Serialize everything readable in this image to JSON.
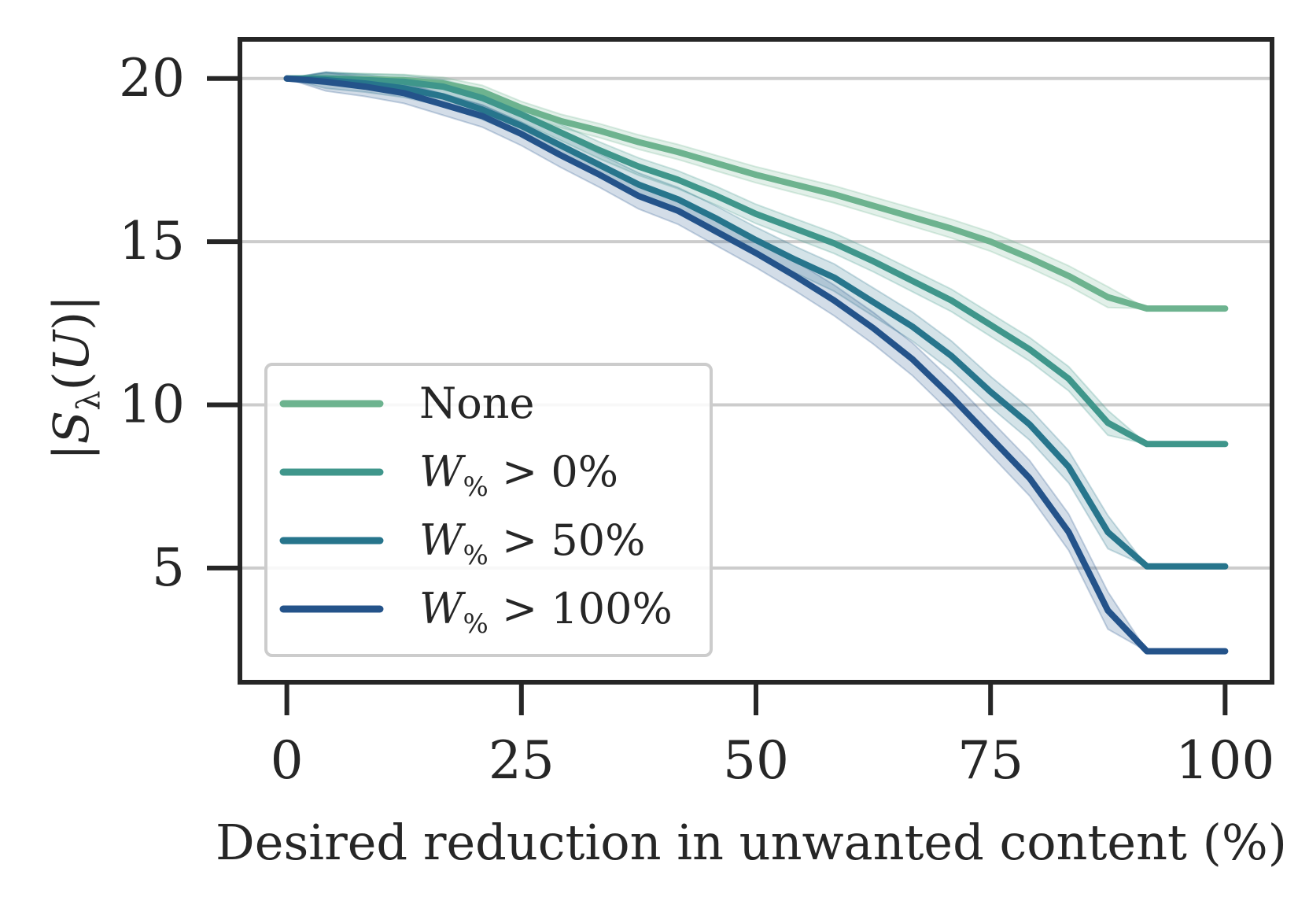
{
  "chart_data": {
    "type": "line",
    "title": "",
    "xlabel": "Desired reduction in unwanted content (%)",
    "ylabel": "|S_λ(U)|",
    "xlim": [
      -5,
      105
    ],
    "ylim": [
      1.5,
      21.2
    ],
    "xticks": [
      0,
      25,
      50,
      75,
      100
    ],
    "xtick_labels": [
      "0",
      "25",
      "50",
      "75",
      "100"
    ],
    "yticks": [
      5,
      10,
      15,
      20
    ],
    "ytick_labels": [
      "5",
      "10",
      "15",
      "20"
    ],
    "grid": "horizontal",
    "legend_position": "lower-left",
    "x": [
      0,
      4.17,
      8.33,
      12.5,
      16.67,
      20.83,
      25,
      29.17,
      33.33,
      37.5,
      41.67,
      45.83,
      50,
      54.17,
      58.33,
      62.5,
      66.67,
      70.83,
      75,
      79.17,
      83.33,
      87.5,
      91.67,
      95.83,
      100
    ],
    "series": [
      {
        "name": "None",
        "legend_label": "None",
        "color": "#6db38f",
        "values": [
          20,
          20,
          19.98,
          19.95,
          19.85,
          19.6,
          19.1,
          18.7,
          18.4,
          18.05,
          17.75,
          17.4,
          17.05,
          16.75,
          16.45,
          16.1,
          15.75,
          15.4,
          15.0,
          14.5,
          13.95,
          13.3,
          12.95,
          12.95,
          12.95
        ],
        "band": 0.25
      },
      {
        "name": "W% > 0%",
        "legend_label": "W",
        "legend_sub": "%",
        "legend_cond": "> 0%",
        "color": "#3f968b",
        "values": [
          20,
          20,
          19.95,
          19.9,
          19.75,
          19.4,
          18.9,
          18.35,
          17.8,
          17.3,
          16.9,
          16.4,
          15.85,
          15.4,
          14.95,
          14.4,
          13.8,
          13.2,
          12.45,
          11.7,
          10.8,
          9.45,
          8.8,
          8.8,
          8.8
        ],
        "band": 0.3
      },
      {
        "name": "W% > 50%",
        "legend_label": "W",
        "legend_sub": "%",
        "legend_cond": "> 50%",
        "color": "#27758c",
        "values": [
          20,
          19.95,
          19.85,
          19.7,
          19.45,
          19.05,
          18.55,
          17.95,
          17.35,
          16.75,
          16.3,
          15.7,
          15.05,
          14.45,
          13.9,
          13.15,
          12.4,
          11.5,
          10.4,
          9.4,
          8.1,
          6.1,
          5.05,
          5.05,
          5.05
        ],
        "band": 0.4
      },
      {
        "name": "W% > 100%",
        "legend_label": "W",
        "legend_sub": "%",
        "legend_cond": "> 100%",
        "color": "#24538a",
        "values": [
          20,
          19.9,
          19.75,
          19.55,
          19.2,
          18.85,
          18.3,
          17.65,
          17.05,
          16.4,
          15.95,
          15.3,
          14.65,
          13.95,
          13.2,
          12.35,
          11.4,
          10.25,
          9.0,
          7.75,
          6.1,
          3.7,
          2.45,
          2.45,
          2.45
        ],
        "band": 0.45
      }
    ]
  }
}
